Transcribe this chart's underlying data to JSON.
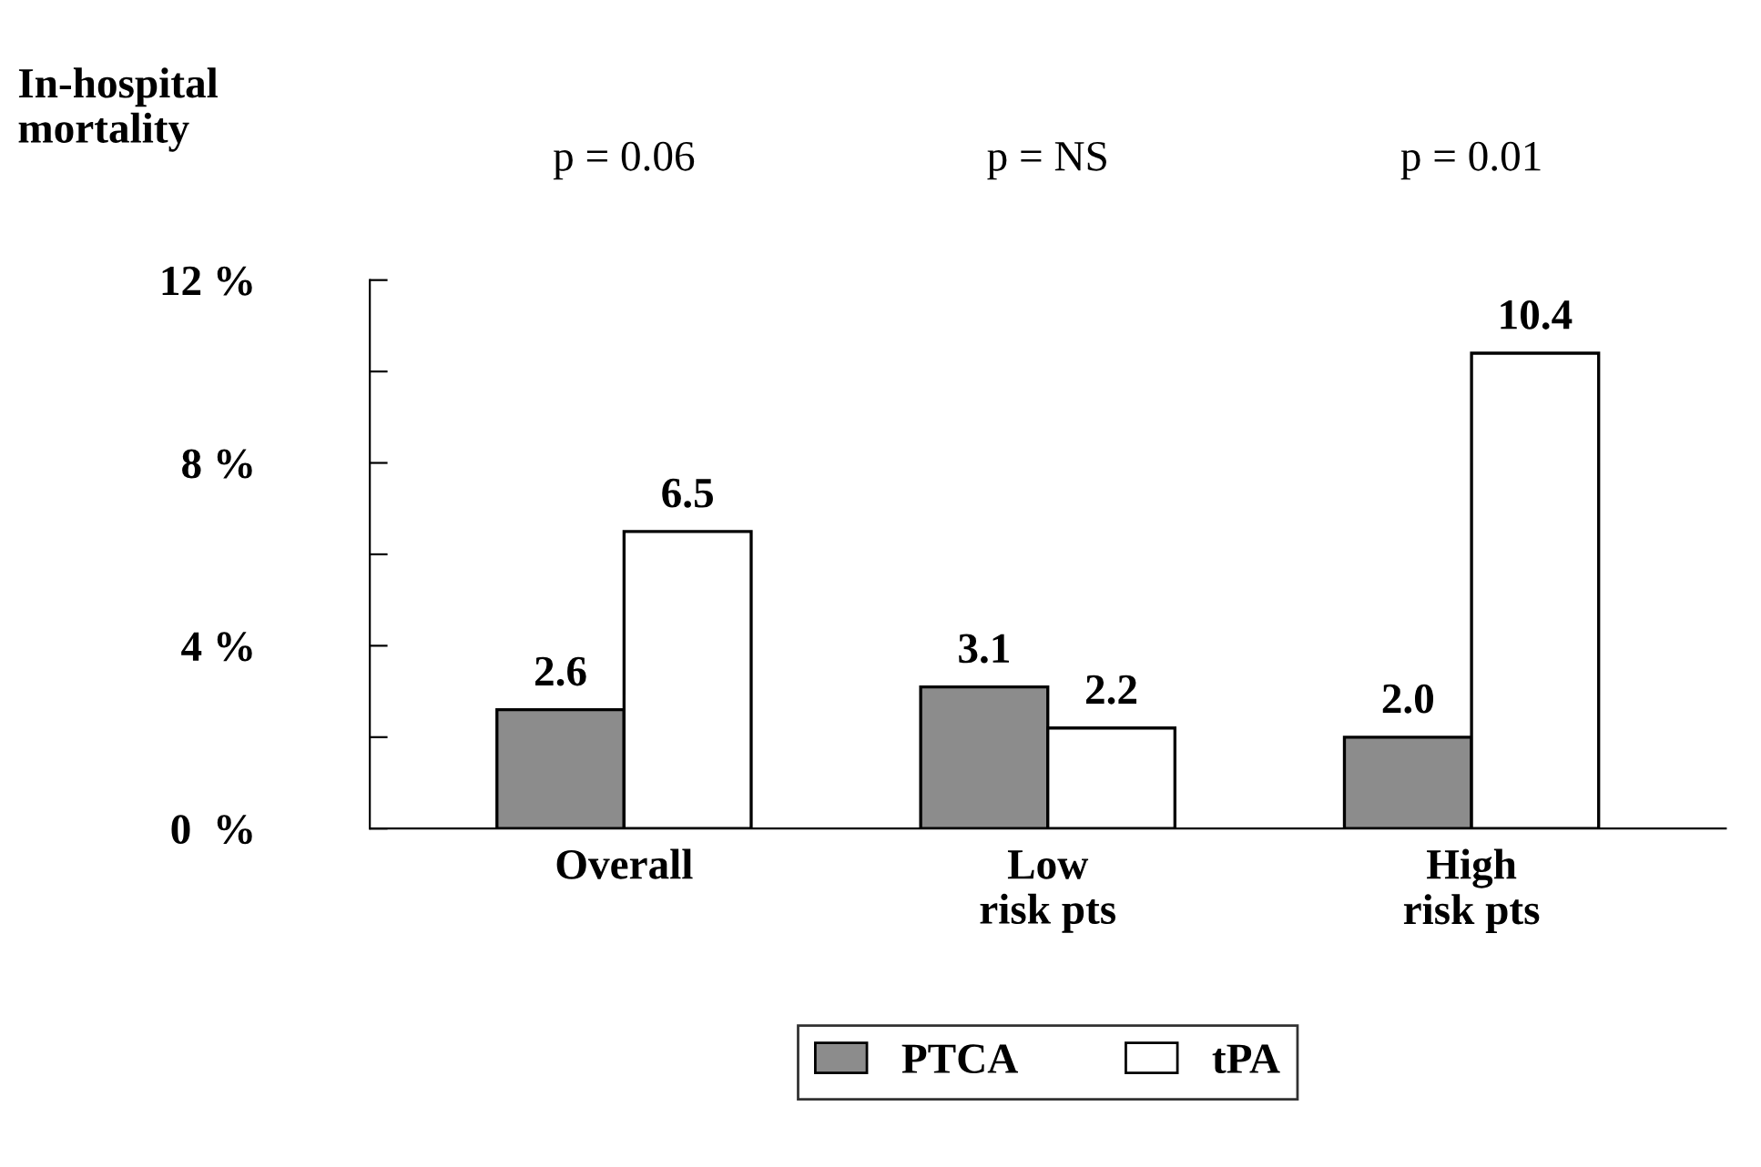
{
  "chart_data": {
    "type": "bar",
    "ylabel": "In-hospital mortality",
    "categories": [
      "Overall",
      "Low\nrisk pts",
      "High\nrisk pts"
    ],
    "series": [
      {
        "name": "PTCA",
        "color": "#8c8c8c",
        "values": [
          2.6,
          3.1,
          2.0
        ],
        "value_labels": [
          "2.6",
          "3.1",
          "2.0"
        ]
      },
      {
        "name": "tPA",
        "color": "#ffffff",
        "values": [
          6.5,
          2.2,
          10.4
        ],
        "value_labels": [
          "6.5",
          "2.2",
          "10.4"
        ]
      }
    ],
    "ylim": [
      0,
      12
    ],
    "yticks": [
      {
        "value": 0,
        "label": "0  %"
      },
      {
        "value": 2,
        "label": null
      },
      {
        "value": 4,
        "label": "4 %"
      },
      {
        "value": 6,
        "label": null
      },
      {
        "value": 8,
        "label": "8 %"
      },
      {
        "value": 10,
        "label": null
      },
      {
        "value": 12,
        "label": "12 %"
      }
    ],
    "annotations": [
      "p = 0.06",
      "p = NS",
      "p = 0.01"
    ],
    "legend": "bottom",
    "grid": false
  }
}
